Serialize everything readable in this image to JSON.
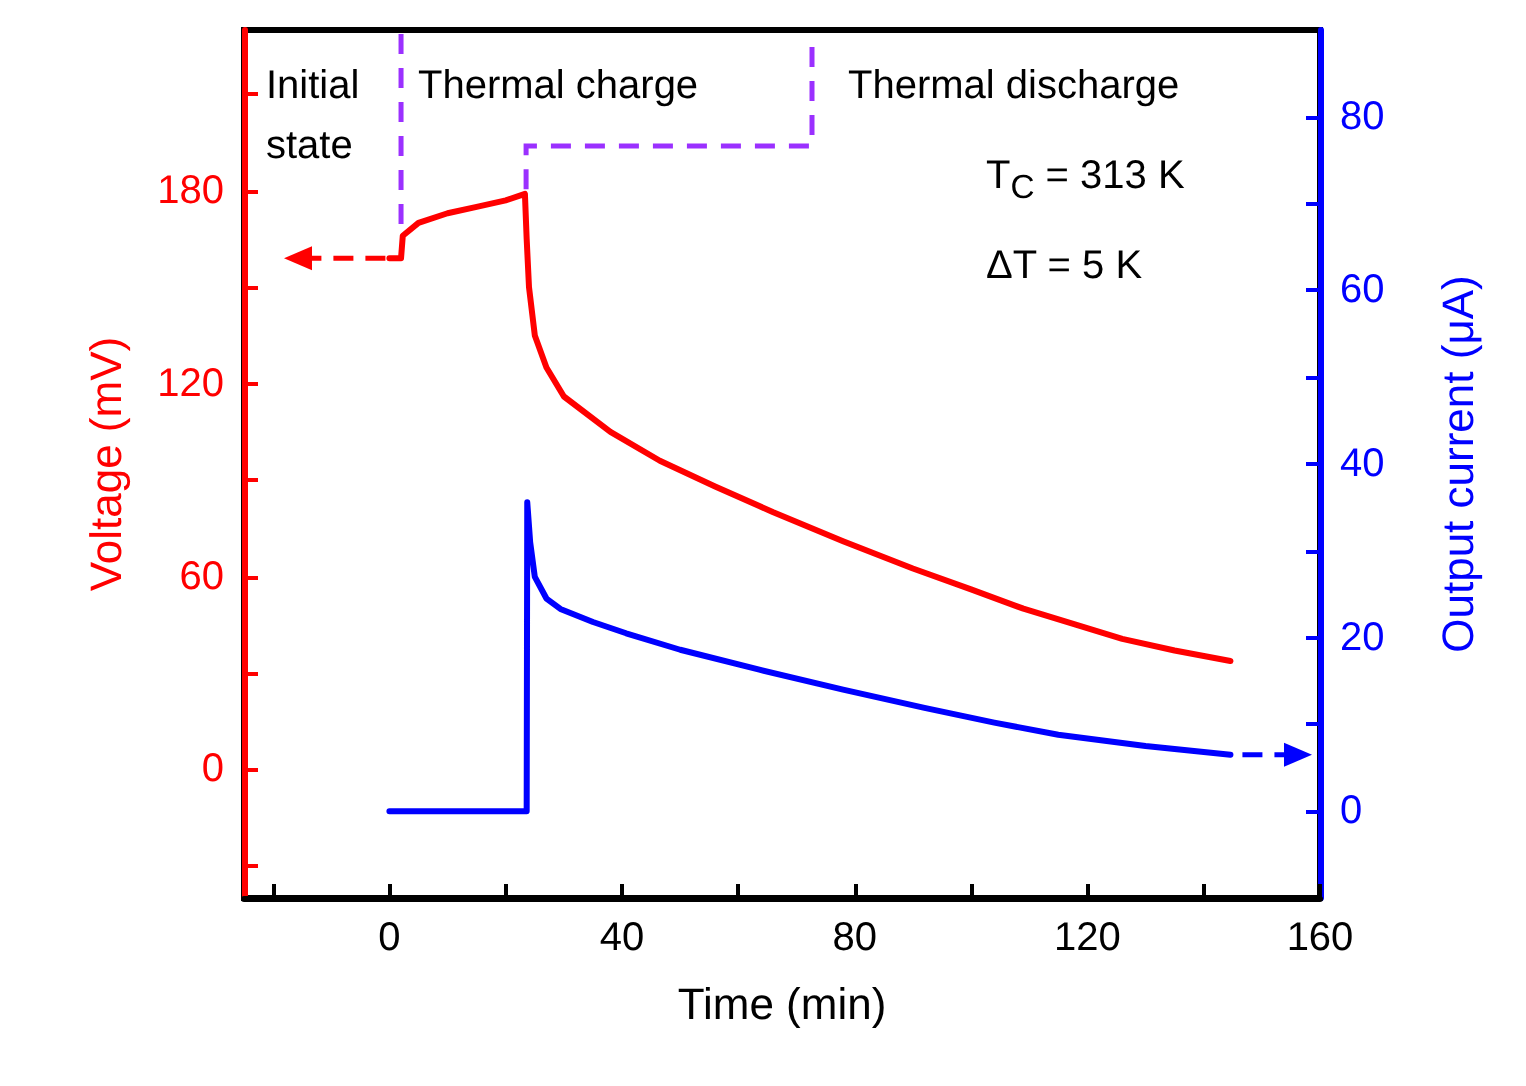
{
  "chart_data": {
    "type": "line",
    "xlabel": "Time (min)",
    "ylabel": "Voltage (mV)",
    "y2label": "Output current (μA)",
    "xlim": [
      -25,
      160
    ],
    "xticks": [
      {
        "value": -20,
        "label": null
      },
      0,
      {
        "value": 20,
        "label": null
      },
      40,
      {
        "value": 60,
        "label": null
      },
      80,
      {
        "value": 100,
        "label": null
      },
      120,
      {
        "value": 140,
        "label": null
      },
      160
    ],
    "ylim": [
      -40,
      230
    ],
    "yticks": [
      {
        "value": -30,
        "label": null
      },
      0,
      {
        "value": 30,
        "label": null
      },
      60,
      {
        "value": 90,
        "label": null
      },
      120,
      {
        "value": 150,
        "label": null
      },
      180,
      {
        "value": 210,
        "label": null
      }
    ],
    "y2lim": [
      -10,
      90
    ],
    "y2ticks": [
      0,
      {
        "value": 10,
        "label": null
      },
      20,
      {
        "value": 30,
        "label": null
      },
      40,
      {
        "value": 50,
        "label": null
      },
      60,
      {
        "value": 70,
        "label": null
      },
      80
    ],
    "grid": false,
    "marker": "none",
    "line_style": "solid",
    "annotations": [
      {
        "text": "Initial\nstate",
        "x": 2,
        "y": 165
      },
      "Thermal charge",
      {
        "text": "Thermal discharge",
        "x": 23.5,
        "y": 178
      },
      "T$_{C}$ = 313 K",
      "ΔT = 5 K"
    ],
    "series": [
      {
        "color": "#ff0000",
        "x": [
          0,
          2,
          2.3,
          5,
          10,
          15,
          20,
          23.3,
          23.6,
          24,
          25,
          27,
          30,
          38,
          46.5,
          56,
          66,
          78,
          90,
          100,
          109,
          118,
          126,
          135,
          144.6
        ],
        "values": [
          159,
          159,
          166,
          170,
          173,
          175,
          177,
          179,
          165,
          150,
          135,
          125,
          116,
          105,
          96,
          88,
          80,
          71,
          62.5,
          56,
          50,
          45,
          40.6,
          37,
          33.7
        ]
      },
      {
        "color": "#0000ff",
        "axis": "y2",
        "x": [
          0,
          23.6,
          23.7,
          24.2,
          25,
          27,
          29.4,
          35,
          40.7,
          50,
          63.6,
          78,
          92,
          104,
          115,
          130,
          144.6
        ],
        "values": [
          0,
          0,
          35.6,
          31,
          27,
          24.5,
          23.3,
          21.8,
          20.5,
          18.6,
          16.3,
          14,
          11.9,
          10.2,
          8.8,
          7.5,
          6.5
        ]
      }
    ]
  }
}
